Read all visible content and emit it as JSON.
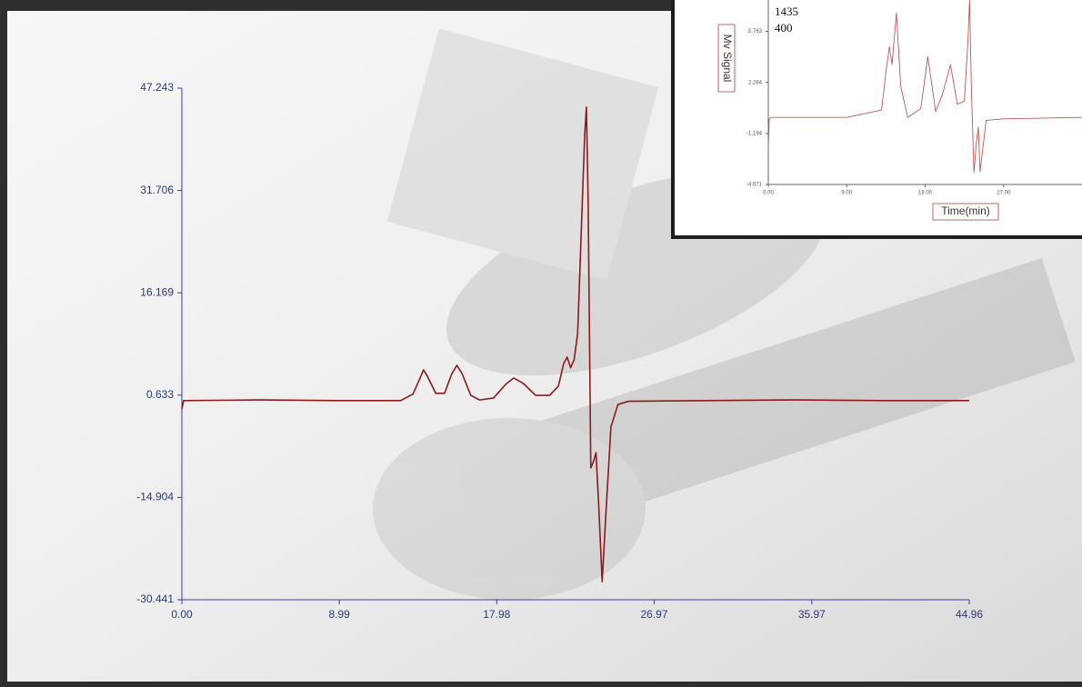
{
  "chart_data": [
    {
      "type": "line",
      "color": "#8b1a1a",
      "x": [
        0,
        0.1,
        0.2,
        4.4,
        8.8,
        12.5,
        13.2,
        13.6,
        13.8,
        14.0,
        14.5,
        15.0,
        15.4,
        15.7,
        16.0,
        16.5,
        17.0,
        17.8,
        18.5,
        18.95,
        19.5,
        20.2,
        21.0,
        21.5,
        21.8,
        22.0,
        22.2,
        22.4,
        22.6,
        22.8,
        23.0,
        23.1,
        23.2,
        23.35,
        23.5,
        23.65,
        23.8,
        24.0,
        24.2,
        24.5,
        24.9,
        25.5,
        30,
        35,
        40,
        44.96
      ],
      "values": [
        -1.5,
        -0.2,
        -0.2,
        -0.1,
        -0.2,
        -0.2,
        0.8,
        3.2,
        4.47,
        3.6,
        0.9,
        0.9,
        3.8,
        5.16,
        3.9,
        0.6,
        -0.1,
        0.2,
        2.3,
        3.23,
        2.4,
        0.6,
        0.6,
        2.0,
        5.4,
        6.4,
        4.8,
        6.0,
        10,
        25,
        40,
        44.35,
        30,
        -10.4,
        -9.5,
        -8.1,
        -16,
        -27.7,
        -18,
        -4.2,
        -0.8,
        -0.3,
        -0.2,
        -0.1,
        -0.2,
        -0.2
      ],
      "xlim": [
        0,
        44.96
      ],
      "xticks": [
        {
          "value": 0,
          "label": "0.00"
        },
        8.99,
        17.98,
        26.97,
        35.97,
        44.96
      ],
      "ylim": [
        -30.441,
        47.243
      ],
      "yticks": [
        47.243,
        31.706,
        16.169,
        0.633,
        -14.904,
        -30.441
      ]
    },
    {
      "type": "line",
      "color": "#b85a5a",
      "annotations": [
        "1435",
        "400"
      ],
      "x_label": "Time(min)",
      "y_label": "Mv Signal",
      "x": [
        0,
        0.1,
        0.3,
        9,
        13.0,
        13.5,
        13.9,
        14.2,
        14.7,
        15.2,
        16.0,
        17.5,
        18.3,
        19.2,
        20.0,
        20.9,
        21.7,
        22.5,
        22.9,
        23.1,
        23.3,
        23.6,
        23.85,
        24.1,
        24.3,
        25,
        27,
        36
      ],
      "values": [
        -2.3,
        -0.2,
        -0.1,
        -0.1,
        0.4,
        3.0,
        4.72,
        3.5,
        7.02,
        2.0,
        -0.1,
        0.5,
        4.04,
        0.3,
        1.5,
        3.48,
        0.8,
        1.0,
        5,
        7.9,
        2,
        -3.86,
        -2.0,
        -0.75,
        -3.8,
        -0.3,
        -0.2,
        -0.1
      ],
      "xlim": [
        0,
        36
      ],
      "xticks": [
        {
          "value": 0,
          "label": "0.00"
        },
        {
          "value": 9,
          "label": "9.00"
        },
        {
          "value": 18,
          "label": "18.00"
        },
        {
          "value": 27,
          "label": "27.00"
        }
      ],
      "ylim": [
        -4.671,
        7.9
      ],
      "yticks": [
        5.763,
        2.284,
        -1.194,
        -4.671
      ]
    }
  ]
}
